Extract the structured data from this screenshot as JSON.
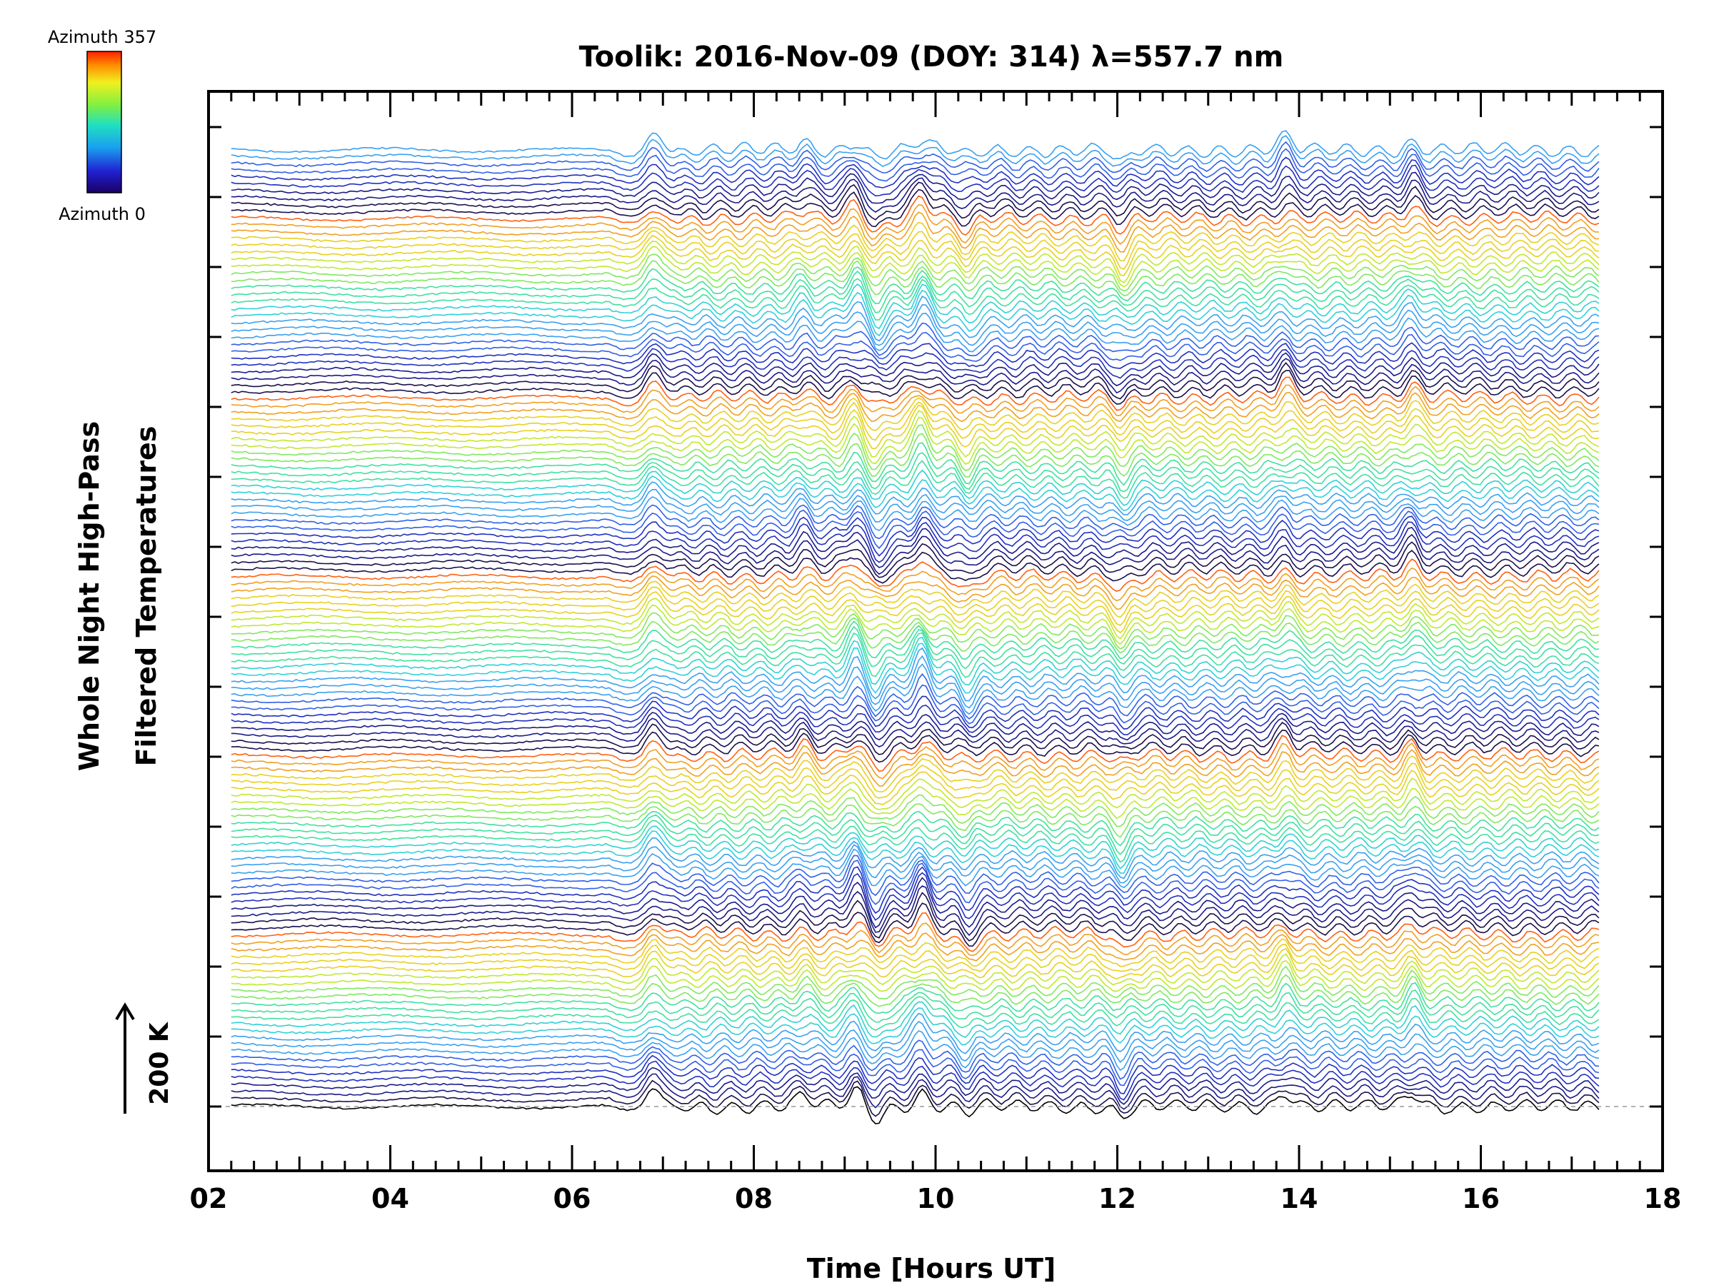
{
  "chart_data": {
    "type": "line",
    "title": "Toolik: 2016-Nov-09 (DOY: 314) λ=557.7 nm",
    "xlabel": "Time [Hours UT]",
    "ylabel_line1": "Whole Night High-Pass",
    "ylabel_line2": "Filtered Temperatures",
    "xlim": [
      2,
      18
    ],
    "x_ticks": [
      "02",
      "04",
      "06",
      "08",
      "10",
      "12",
      "14",
      "16",
      "18"
    ],
    "x_tick_values": [
      2,
      4,
      6,
      8,
      10,
      12,
      14,
      16,
      18
    ],
    "x_range": [
      2.25,
      17.3
    ],
    "n_series": 140,
    "series_color_scale": "azimuth 0 to 357 (rainbow, repeating groups)",
    "colorbar": {
      "top_label": "Azimuth 357",
      "bottom_label": "Azimuth 0",
      "min": 0,
      "max": 357
    },
    "scale_bar_label": "200 K",
    "features": [
      {
        "t": 6.9,
        "amp": 1.0,
        "kind": "step"
      },
      {
        "t": 8.55,
        "amp": 0.6,
        "kind": "peak"
      },
      {
        "t": 9.12,
        "amp": 1.1,
        "kind": "peak"
      },
      {
        "t": 9.35,
        "amp": -0.9,
        "kind": "dip"
      },
      {
        "t": 9.85,
        "amp": 1.3,
        "kind": "peak"
      },
      {
        "t": 10.35,
        "amp": -0.8,
        "kind": "dip"
      },
      {
        "t": 12.05,
        "amp": -0.9,
        "kind": "dip"
      },
      {
        "t": 13.85,
        "amp": 0.8,
        "kind": "peak"
      },
      {
        "t": 15.25,
        "amp": 0.9,
        "kind": "peak"
      }
    ]
  }
}
